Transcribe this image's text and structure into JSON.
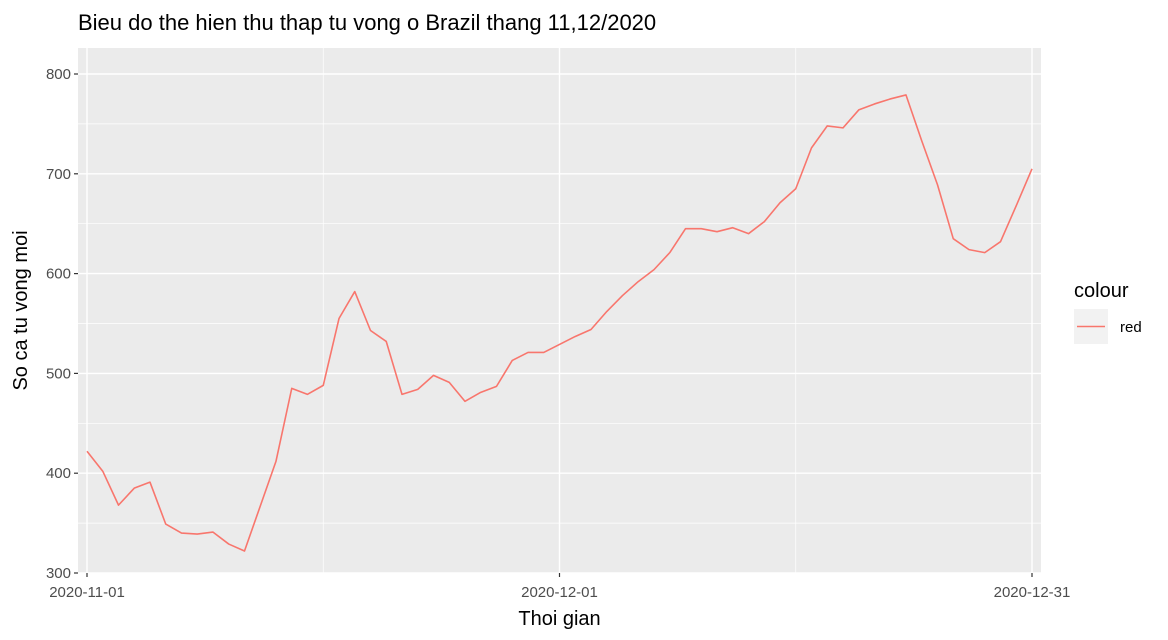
{
  "chart_data": {
    "type": "line",
    "title": "Bieu do the hien thu thap tu vong o Brazil thang 11,12/2020",
    "xlabel": "Thoi gian",
    "ylabel": "So ca tu vong moi",
    "x_tick_labels": [
      "2020-11-01",
      "2020-12-01",
      "2020-12-31"
    ],
    "y_tick_labels": [
      "300",
      "400",
      "500",
      "600",
      "700",
      "800"
    ],
    "y_ticks": [
      300,
      400,
      500,
      600,
      700,
      800
    ],
    "ylim": [
      300,
      800
    ],
    "xlim": [
      "2020-11-01",
      "2020-12-31"
    ],
    "grid": true,
    "legend": {
      "title": "colour",
      "position": "right"
    },
    "colors": {
      "panel_background": "#ebebeb",
      "grid": "#ffffff",
      "line": "#f8766d",
      "legend_key_background": "#f2f2f2"
    },
    "series": [
      {
        "name": "red",
        "x": [
          "2020-11-01",
          "2020-11-02",
          "2020-11-03",
          "2020-11-04",
          "2020-11-05",
          "2020-11-06",
          "2020-11-07",
          "2020-11-08",
          "2020-11-09",
          "2020-11-10",
          "2020-11-11",
          "2020-11-12",
          "2020-11-13",
          "2020-11-14",
          "2020-11-15",
          "2020-11-16",
          "2020-11-17",
          "2020-11-18",
          "2020-11-19",
          "2020-11-20",
          "2020-11-21",
          "2020-11-22",
          "2020-11-23",
          "2020-11-24",
          "2020-11-25",
          "2020-11-26",
          "2020-11-27",
          "2020-11-28",
          "2020-11-29",
          "2020-11-30",
          "2020-12-01",
          "2020-12-02",
          "2020-12-03",
          "2020-12-04",
          "2020-12-05",
          "2020-12-06",
          "2020-12-07",
          "2020-12-08",
          "2020-12-09",
          "2020-12-10",
          "2020-12-11",
          "2020-12-12",
          "2020-12-13",
          "2020-12-14",
          "2020-12-15",
          "2020-12-16",
          "2020-12-17",
          "2020-12-18",
          "2020-12-19",
          "2020-12-20",
          "2020-12-21",
          "2020-12-22",
          "2020-12-23",
          "2020-12-24",
          "2020-12-25",
          "2020-12-26",
          "2020-12-27",
          "2020-12-28",
          "2020-12-29",
          "2020-12-30",
          "2020-12-31"
        ],
        "values": [
          422,
          402,
          368,
          385,
          391,
          349,
          340,
          339,
          341,
          329,
          322,
          367,
          412,
          485,
          479,
          488,
          555,
          582,
          543,
          532,
          479,
          484,
          498,
          491,
          472,
          481,
          487,
          513,
          521,
          521,
          529,
          537,
          544,
          562,
          578,
          592,
          604,
          621,
          645,
          645,
          642,
          646,
          640,
          652,
          671,
          685,
          726,
          748,
          746,
          764,
          770,
          775,
          779,
          733,
          689,
          635,
          624,
          621,
          632,
          668,
          705
        ]
      }
    ]
  }
}
